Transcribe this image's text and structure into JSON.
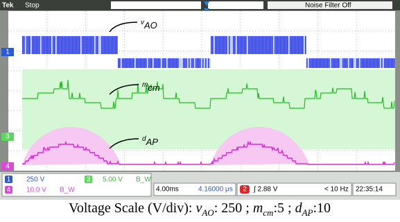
{
  "header": {
    "brand": "Tek",
    "status": "Stop",
    "filter": "Noise Filter Off"
  },
  "channel_markers": [
    "1",
    "3",
    "4"
  ],
  "annotations": [
    {
      "symbol": "v",
      "sub": "AO"
    },
    {
      "symbol": "m",
      "sub": "cm"
    },
    {
      "symbol": "d",
      "sub": "AP"
    }
  ],
  "status_bar": {
    "ch1": {
      "number": "1",
      "scale": "250 V"
    },
    "ch3": {
      "number": "3",
      "scale": "5.00 V",
      "bw": "B_W"
    },
    "ch4": {
      "number": "4",
      "scale": "10.0 V",
      "bw": "B_W"
    },
    "timebase": "4.00ms",
    "position": "4.16000 μs",
    "trigger_channel": "2",
    "trigger_level": "∫ 2.88 V",
    "frequency": "< 10 Hz",
    "clock": "22:35:14"
  },
  "caption": {
    "prefix": "Voltage Scale (V/div):",
    "delimiter": ";",
    "items": [
      {
        "symbol": "v",
        "sub": "AO",
        "sep": ":",
        "value": 250
      },
      {
        "symbol": "m",
        "sub": "cm",
        "sep": ":",
        "value": 5
      },
      {
        "symbol": "d",
        "sub": "AP",
        "sep": ":",
        "value": 10
      }
    ]
  }
}
